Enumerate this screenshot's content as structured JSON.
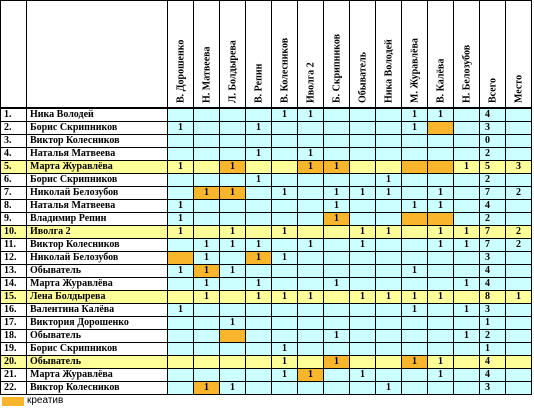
{
  "columns": [
    "В. Дорошенко",
    "Н. Матвеева",
    "Л. Болдырева",
    "В. Репин",
    "В. Колесников",
    "Иволга 2",
    "Б. Скрипников",
    "Обыватель",
    "Ника Володей",
    "М. Журавлёва",
    "В. Калёва",
    "Н. Белозубов",
    "Всего",
    "Место"
  ],
  "rows": [
    {
      "num": "1.",
      "name": "Ника Володей",
      "cells": [
        null,
        null,
        null,
        null,
        1,
        1,
        null,
        null,
        null,
        1,
        1,
        null
      ],
      "creative": [],
      "total": 4,
      "place": null,
      "highlight": false
    },
    {
      "num": "2.",
      "name": "Борис Скрипников",
      "cells": [
        1,
        null,
        null,
        1,
        null,
        null,
        null,
        null,
        null,
        1,
        null,
        null
      ],
      "creative": [
        10
      ],
      "total": 3,
      "place": null,
      "highlight": false
    },
    {
      "num": "3.",
      "name": "Виктор Колесников",
      "cells": [
        null,
        null,
        null,
        null,
        null,
        null,
        null,
        null,
        null,
        null,
        null,
        null
      ],
      "creative": [],
      "total": 0,
      "place": null,
      "highlight": false
    },
    {
      "num": "4.",
      "name": "Наталья Матвеева",
      "cells": [
        null,
        null,
        null,
        1,
        null,
        1,
        null,
        null,
        null,
        null,
        null,
        null
      ],
      "creative": [],
      "total": 2,
      "place": null,
      "highlight": false
    },
    {
      "num": "5.",
      "name": "Марта Журавлёва",
      "cells": [
        1,
        null,
        1,
        null,
        null,
        1,
        1,
        null,
        null,
        null,
        null,
        1
      ],
      "creative": [
        2,
        5,
        6,
        9,
        10
      ],
      "total": 5,
      "place": 3,
      "highlight": true
    },
    {
      "num": "6.",
      "name": "Борис Скрипников",
      "cells": [
        null,
        null,
        null,
        1,
        null,
        null,
        null,
        null,
        1,
        null,
        null,
        null
      ],
      "creative": [],
      "total": 2,
      "place": null,
      "highlight": false
    },
    {
      "num": "7.",
      "name": "Николай Белозубов",
      "cells": [
        null,
        1,
        1,
        null,
        1,
        null,
        1,
        1,
        1,
        null,
        1,
        null
      ],
      "creative": [
        1,
        2
      ],
      "total": 7,
      "place": 2,
      "highlight": false
    },
    {
      "num": "8.",
      "name": "Наталья Матвеева",
      "cells": [
        1,
        null,
        null,
        null,
        null,
        null,
        1,
        null,
        null,
        1,
        1,
        null
      ],
      "creative": [],
      "total": 4,
      "place": null,
      "highlight": false
    },
    {
      "num": "9.",
      "name": "Владимир Репин",
      "cells": [
        1,
        null,
        null,
        null,
        null,
        null,
        1,
        null,
        null,
        null,
        null,
        null
      ],
      "creative": [
        6,
        9,
        10
      ],
      "total": 2,
      "place": null,
      "highlight": false
    },
    {
      "num": "10.",
      "name": "Иволга 2",
      "cells": [
        1,
        null,
        1,
        null,
        1,
        null,
        null,
        1,
        1,
        null,
        1,
        1
      ],
      "creative": [],
      "total": 7,
      "place": 2,
      "highlight": true
    },
    {
      "num": "11.",
      "name": "Виктор Колесников",
      "cells": [
        null,
        1,
        1,
        1,
        null,
        1,
        null,
        1,
        null,
        null,
        1,
        1
      ],
      "creative": [],
      "total": 7,
      "place": 2,
      "highlight": false
    },
    {
      "num": "12.",
      "name": "Николай Белозубов",
      "cells": [
        null,
        1,
        null,
        1,
        1,
        null,
        null,
        null,
        null,
        null,
        null,
        null
      ],
      "creative": [
        0,
        3
      ],
      "total": 3,
      "place": null,
      "highlight": false
    },
    {
      "num": "13.",
      "name": "Обыватель",
      "cells": [
        1,
        1,
        1,
        null,
        null,
        null,
        null,
        null,
        null,
        1,
        null,
        null
      ],
      "creative": [
        1
      ],
      "total": 4,
      "place": null,
      "highlight": false
    },
    {
      "num": "14.",
      "name": "Марта Журавлёва",
      "cells": [
        null,
        1,
        null,
        1,
        null,
        null,
        1,
        null,
        null,
        null,
        null,
        1
      ],
      "creative": [],
      "total": 4,
      "place": null,
      "highlight": false
    },
    {
      "num": "15.",
      "name": "Лена Болдырева",
      "cells": [
        null,
        1,
        null,
        1,
        1,
        1,
        null,
        1,
        1,
        1,
        1,
        null
      ],
      "creative": [],
      "total": 8,
      "place": 1,
      "highlight": true
    },
    {
      "num": "16.",
      "name": "Валентина Калёва",
      "cells": [
        1,
        null,
        null,
        null,
        null,
        null,
        null,
        null,
        null,
        1,
        null,
        1
      ],
      "creative": [],
      "total": 3,
      "place": null,
      "highlight": false
    },
    {
      "num": "17.",
      "name": "Виктория Дорошенко",
      "cells": [
        null,
        null,
        1,
        null,
        null,
        null,
        null,
        null,
        null,
        null,
        null,
        null
      ],
      "creative": [],
      "total": 1,
      "place": null,
      "highlight": false
    },
    {
      "num": "18.",
      "name": "Обыватель",
      "cells": [
        null,
        null,
        null,
        null,
        null,
        null,
        1,
        null,
        null,
        null,
        null,
        1
      ],
      "creative": [
        2
      ],
      "total": 2,
      "place": null,
      "highlight": false
    },
    {
      "num": "19.",
      "name": "Борис Скрипников",
      "cells": [
        null,
        null,
        null,
        null,
        1,
        null,
        null,
        null,
        null,
        null,
        null,
        null
      ],
      "creative": [],
      "total": 1,
      "place": null,
      "highlight": false
    },
    {
      "num": "20.",
      "name": "Обыватель",
      "cells": [
        null,
        null,
        null,
        null,
        1,
        null,
        1,
        null,
        null,
        1,
        1,
        null
      ],
      "creative": [
        6,
        9
      ],
      "total": 4,
      "place": null,
      "highlight": true
    },
    {
      "num": "21.",
      "name": "Марта Журавлёва",
      "cells": [
        null,
        null,
        null,
        null,
        1,
        1,
        null,
        1,
        null,
        null,
        1,
        null
      ],
      "creative": [
        5
      ],
      "total": 4,
      "place": null,
      "highlight": false
    },
    {
      "num": "22.",
      "name": "Виктор Колесников",
      "cells": [
        null,
        1,
        1,
        null,
        null,
        null,
        null,
        null,
        1,
        null,
        null,
        null
      ],
      "creative": [
        1
      ],
      "total": 3,
      "place": null,
      "highlight": false
    }
  ],
  "legend": {
    "label": "креатив"
  }
}
